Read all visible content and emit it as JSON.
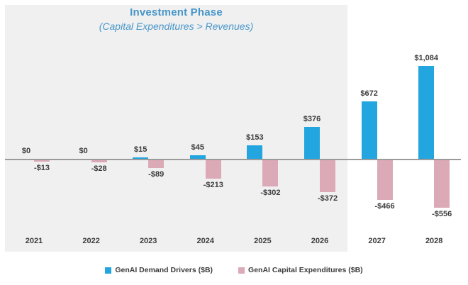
{
  "chart_data": {
    "type": "bar",
    "title": "Investment Phase",
    "subtitle": "(Capital Expenditures > Revenues)",
    "title_color": "#4796c8",
    "categories": [
      "2021",
      "2022",
      "2023",
      "2024",
      "2025",
      "2026",
      "2027",
      "2028"
    ],
    "series": [
      {
        "name": "GenAI Demand Drivers ($B)",
        "color": "#23a5df",
        "values": [
          0,
          0,
          15,
          45,
          153,
          376,
          672,
          1084
        ],
        "labels": [
          "$0",
          "$0",
          "$15",
          "$45",
          "$153",
          "$376",
          "$672",
          "$1,084"
        ]
      },
      {
        "name": "GenAI Capital Expenditures ($B)",
        "color": "#dcaab7",
        "values": [
          -13,
          -28,
          -89,
          -213,
          -302,
          -372,
          -466,
          -556
        ],
        "labels": [
          "-$13",
          "-$28",
          "-$89",
          "-$213",
          "-$302",
          "-$372",
          "-$466",
          "-$556"
        ]
      }
    ],
    "ylim": [
      -600,
      1150
    ],
    "grid": "off",
    "legend_position": "bottom",
    "highlight_region": {
      "from": "2021",
      "to": "2026",
      "background": "#f0f0f1"
    },
    "axis_line_color": "#9b9b9b"
  }
}
